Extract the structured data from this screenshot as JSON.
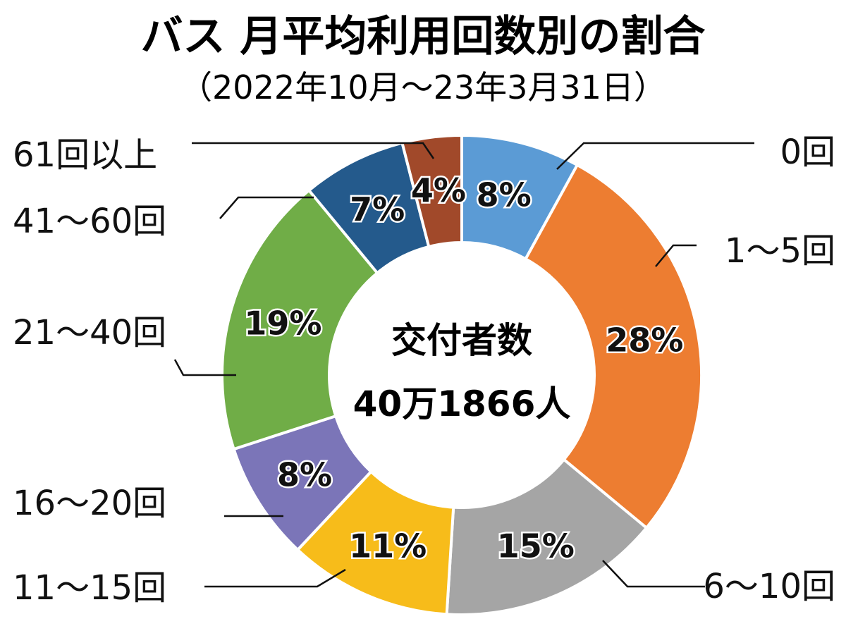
{
  "chart_data": {
    "type": "pie",
    "variant": "donut",
    "title": "バス 月平均利用回数別の割合",
    "subtitle": "（2022年10月～23年3月31日）",
    "center_label": {
      "line1": "交付者数",
      "line2": "40万1866人"
    },
    "unit": "%",
    "direction": "clockwise from top",
    "categories": [
      "0回",
      "1～5回",
      "6～10回",
      "11～15回",
      "16～20回",
      "21～40回",
      "41～60回",
      "61回以上"
    ],
    "values": [
      8,
      28,
      15,
      11,
      8,
      19,
      7,
      4
    ],
    "value_labels": [
      "8%",
      "28%",
      "15%",
      "11%",
      "8%",
      "19%",
      "7%",
      "4%"
    ],
    "colors": [
      "#5b9bd5",
      "#ed7d31",
      "#a5a5a5",
      "#f7bc1a",
      "#7b75b8",
      "#70ad47",
      "#245a8c",
      "#a1492a"
    ],
    "label_text_color": "#111111",
    "legend": "none (category labels placed around the chart with leader lines)"
  }
}
